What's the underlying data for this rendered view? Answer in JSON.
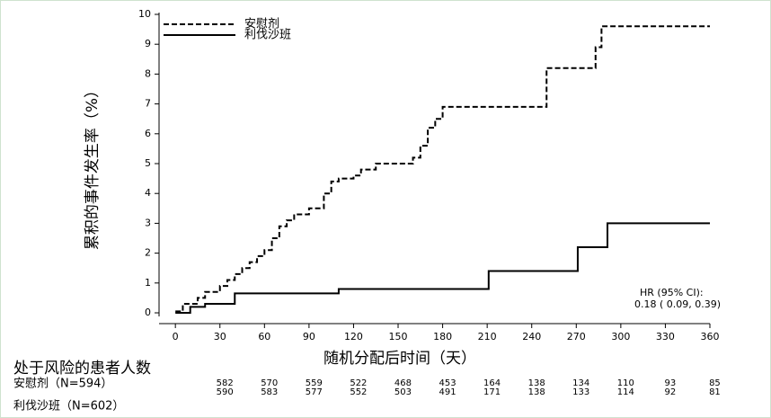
{
  "chart_data": {
    "type": "step",
    "x_label": "随机分配后时间（天）",
    "y_label": "累积的事件发生率（%）",
    "xlim": [
      -11,
      360
    ],
    "xticks": [
      0,
      30,
      60,
      90,
      120,
      150,
      180,
      210,
      240,
      270,
      300,
      330,
      360
    ],
    "ylim": [
      -0.12,
      10
    ],
    "yticks": [
      0,
      1,
      2,
      3,
      4,
      5,
      6,
      7,
      8,
      9,
      10
    ],
    "series": [
      {
        "name": "安慰剂",
        "color": "#000000",
        "dashed": true,
        "x": [
          0,
          5,
          15,
          20,
          30,
          35,
          40,
          45,
          50,
          55,
          60,
          65,
          70,
          75,
          80,
          90,
          100,
          105,
          110,
          120,
          125,
          135,
          160,
          165,
          170,
          175,
          180,
          250,
          283,
          287,
          360
        ],
        "values": [
          0.05,
          0.3,
          0.5,
          0.7,
          0.9,
          1.1,
          1.3,
          1.5,
          1.7,
          1.9,
          2.1,
          2.5,
          2.9,
          3.1,
          3.3,
          3.5,
          4.0,
          4.4,
          4.5,
          4.6,
          4.8,
          5.0,
          5.2,
          5.6,
          6.2,
          6.5,
          6.9,
          8.2,
          8.9,
          9.6,
          9.6
        ]
      },
      {
        "name": "利伐沙班",
        "color": "#000000",
        "dashed": false,
        "x": [
          0,
          10,
          20,
          40,
          110,
          211,
          271,
          291,
          360
        ],
        "values": [
          0,
          0.2,
          0.3,
          0.65,
          0.8,
          1.4,
          2.2,
          3.0,
          3.0
        ]
      }
    ],
    "annotation": [
      "HR (95% CI):",
      "0.18 ( 0.09,  0.39)"
    ],
    "risk_table": {
      "title": "处于风险的患者人数",
      "rows": [
        {
          "label": "安慰剂（N=594）",
          "values": [
            582,
            570,
            559,
            522,
            468,
            453,
            164,
            138,
            134,
            110,
            93,
            85
          ]
        },
        {
          "label": "利伐沙班（N=602）",
          "values": [
            590,
            583,
            577,
            552,
            503,
            491,
            171,
            138,
            133,
            114,
            92,
            81
          ]
        }
      ]
    }
  }
}
